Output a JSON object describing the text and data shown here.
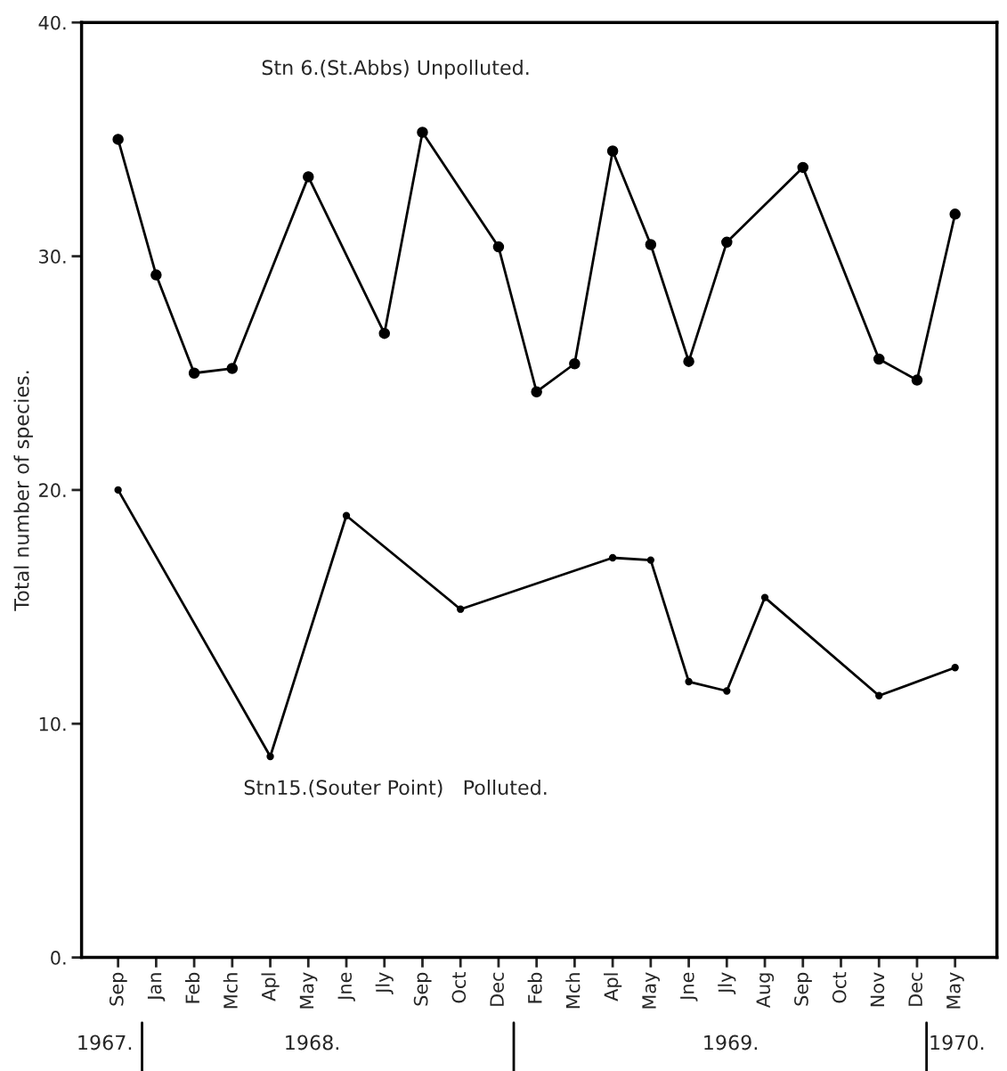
{
  "chart_data": {
    "type": "line",
    "categories": [
      "Sep",
      "Jan",
      "Feb",
      "Mch",
      "Apl",
      "May",
      "Jne",
      "Jly",
      "Sep",
      "Oct",
      "Dec",
      "Feb",
      "Mch",
      "Apl",
      "May",
      "Jne",
      "Jly",
      "Aug",
      "Sep",
      "Oct",
      "Nov",
      "Dec",
      "May"
    ],
    "series": [
      {
        "color": "#000000",
        "values": [
          35.0,
          29.2,
          25.0,
          25.2,
          null,
          33.4,
          null,
          26.7,
          35.3,
          null,
          30.4,
          24.2,
          25.4,
          34.5,
          30.5,
          25.5,
          30.6,
          null,
          33.8,
          null,
          25.6,
          24.7,
          31.8
        ]
      },
      {
        "color": "#000000",
        "values": [
          20.0,
          null,
          null,
          null,
          8.6,
          null,
          18.9,
          null,
          null,
          14.9,
          null,
          null,
          null,
          17.1,
          17.0,
          11.8,
          11.4,
          15.4,
          null,
          null,
          11.2,
          null,
          12.4
        ]
      }
    ],
    "ylabel": "Total number of species.",
    "ylim": [
      0,
      40
    ],
    "yticks": [
      {
        "value": 0,
        "label": "0."
      },
      {
        "value": 10,
        "label": "10."
      },
      {
        "value": 20,
        "label": "20."
      },
      {
        "value": 30,
        "label": "30."
      },
      {
        "value": 40,
        "label": "40."
      }
    ],
    "marker": "circle",
    "line_style": "solid",
    "grid": false,
    "legend": false,
    "annotations": [
      "Stn 6.(St.Abbs) Unpolluted.",
      "Stn15.(Souter Point)   Polluted.",
      "1967.",
      "1968.",
      "1969.",
      "1970."
    ]
  }
}
